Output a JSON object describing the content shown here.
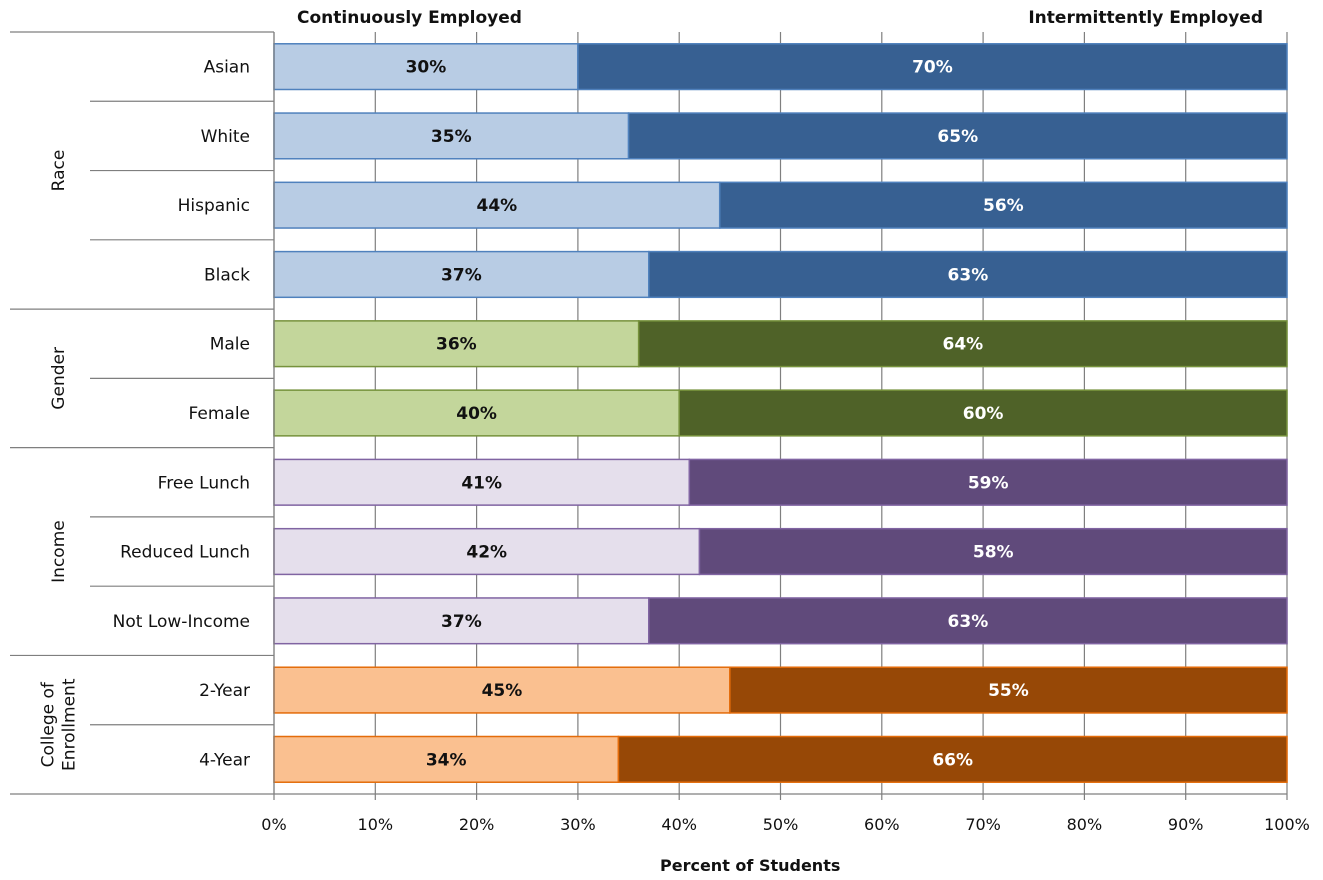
{
  "chart_data": {
    "type": "bar",
    "orientation": "horizontal",
    "stacked": true,
    "series_labels": [
      "Continuously Employed",
      "Intermittently Employed"
    ],
    "xlabel": "Percent of Students",
    "xlim": [
      0,
      100
    ],
    "xticks": [
      "0%",
      "10%",
      "20%",
      "30%",
      "40%",
      "50%",
      "60%",
      "70%",
      "80%",
      "90%",
      "100%"
    ],
    "groups": [
      {
        "name": "Race",
        "name_lines": [
          "Race"
        ],
        "light": "#b8cce4",
        "dark": "#376092",
        "edge": "#4f81bd",
        "rows": [
          {
            "label": "Asian",
            "continuous": 30,
            "intermittent": 70,
            "continuous_label": "30%",
            "intermittent_label": "70%"
          },
          {
            "label": "White",
            "continuous": 35,
            "intermittent": 65,
            "continuous_label": "35%",
            "intermittent_label": "65%"
          },
          {
            "label": "Hispanic",
            "continuous": 44,
            "intermittent": 56,
            "continuous_label": "44%",
            "intermittent_label": "56%"
          },
          {
            "label": "Black",
            "continuous": 37,
            "intermittent": 63,
            "continuous_label": "37%",
            "intermittent_label": "63%"
          }
        ]
      },
      {
        "name": "Gender",
        "name_lines": [
          "Gender"
        ],
        "light": "#c3d69b",
        "dark": "#4f6228",
        "edge": "#76923c",
        "rows": [
          {
            "label": "Male",
            "continuous": 36,
            "intermittent": 64,
            "continuous_label": "36%",
            "intermittent_label": "64%"
          },
          {
            "label": "Female",
            "continuous": 40,
            "intermittent": 60,
            "continuous_label": "40%",
            "intermittent_label": "60%"
          }
        ]
      },
      {
        "name": "Income",
        "name_lines": [
          "Income"
        ],
        "light": "#e5dfec",
        "dark": "#604a7b",
        "edge": "#8064a2",
        "rows": [
          {
            "label": "Free Lunch",
            "continuous": 41,
            "intermittent": 59,
            "continuous_label": "41%",
            "intermittent_label": "59%"
          },
          {
            "label": "Reduced Lunch",
            "continuous": 42,
            "intermittent": 58,
            "continuous_label": "42%",
            "intermittent_label": "58%"
          },
          {
            "label": "Not Low-Income",
            "continuous": 37,
            "intermittent": 63,
            "continuous_label": "37%",
            "intermittent_label": "63%"
          }
        ]
      },
      {
        "name": "College of Enrollment",
        "name_lines": [
          "College of",
          "Enrollment"
        ],
        "light": "#fac090",
        "dark": "#974806",
        "edge": "#e46c0a",
        "rows": [
          {
            "label": "2-Year",
            "continuous": 45,
            "intermittent": 55,
            "continuous_label": "45%",
            "intermittent_label": "55%"
          },
          {
            "label": "4-Year",
            "continuous": 34,
            "intermittent": 66,
            "continuous_label": "34%",
            "intermittent_label": "66%"
          }
        ]
      }
    ]
  }
}
